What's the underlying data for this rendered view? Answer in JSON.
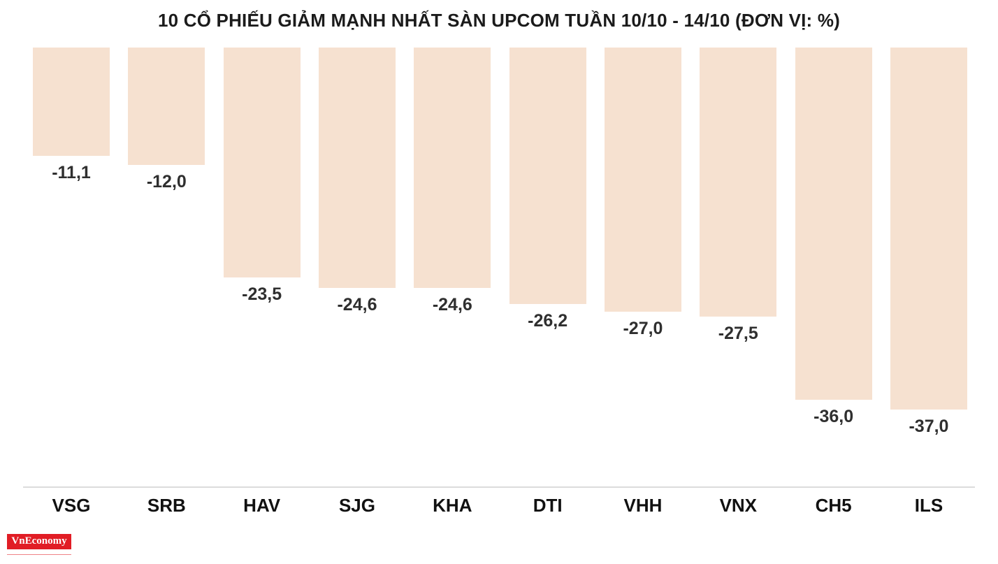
{
  "chart_data": {
    "type": "bar",
    "title": "10 CỔ PHIẾU GIẢM MẠNH NHẤT SÀN UPCOM TUẦN 10/10 - 14/10 (ĐƠN VỊ: %)",
    "categories": [
      "VSG",
      "SRB",
      "HAV",
      "SJG",
      "KHA",
      "DTI",
      "VHH",
      "VNX",
      "CH5",
      "ILS"
    ],
    "values": [
      -11.1,
      -12.0,
      -23.5,
      -24.6,
      -24.6,
      -26.2,
      -27.0,
      -27.5,
      -36.0,
      -37.0
    ],
    "value_labels": [
      "-11,1",
      "-12,0",
      "-23,5",
      "-24,6",
      "-24,6",
      "-26,2",
      "-27,0",
      "-27,5",
      "-36,0",
      "-37,0"
    ],
    "xlabel": "",
    "ylabel": "",
    "unit": "%",
    "ylim": [
      -40,
      0
    ],
    "grid": false,
    "legend": "none",
    "bar_color": "#f6e1d0",
    "value_label_color": "#2f2f2f",
    "axis_label_color": "#111111"
  },
  "footer": {
    "logo_text": "VnEconomy"
  }
}
